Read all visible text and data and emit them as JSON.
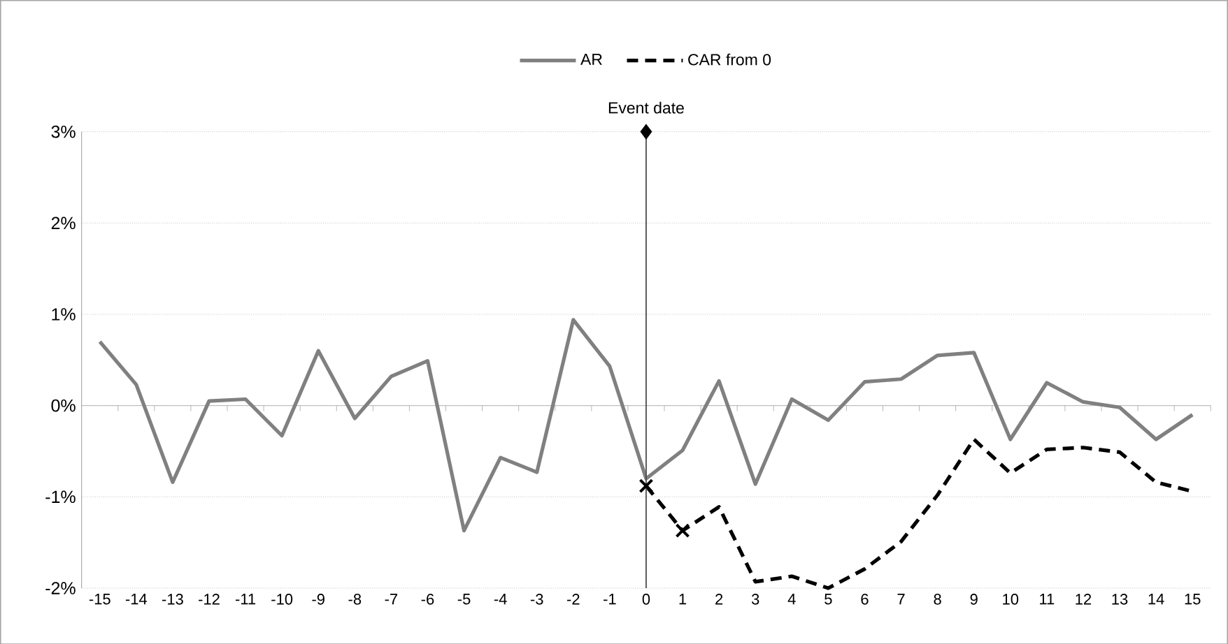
{
  "chart_data": {
    "type": "line",
    "categories": [
      "-15",
      "-14",
      "-13",
      "-12",
      "-11",
      "-10",
      "-9",
      "-8",
      "-7",
      "-6",
      "-5",
      "-4",
      "-3",
      "-2",
      "-1",
      "0",
      "1",
      "2",
      "3",
      "4",
      "5",
      "6",
      "7",
      "8",
      "9",
      "10",
      "11",
      "12",
      "13",
      "14",
      "15"
    ],
    "series": [
      {
        "name": "AR",
        "color": "#808080",
        "line_style": "solid",
        "values": [
          0.7,
          0.23,
          -0.84,
          0.05,
          0.07,
          -0.33,
          0.6,
          -0.14,
          0.32,
          0.49,
          -1.37,
          -0.57,
          -0.73,
          0.94,
          0.43,
          -0.8,
          -0.49,
          0.27,
          -0.86,
          0.07,
          -0.16,
          0.26,
          0.29,
          0.55,
          0.58,
          -0.37,
          0.25,
          0.04,
          -0.02,
          -0.37,
          -0.1
        ]
      },
      {
        "name": "CAR from 0",
        "color": "#000000",
        "line_style": "dashed",
        "values": [
          null,
          null,
          null,
          null,
          null,
          null,
          null,
          null,
          null,
          null,
          null,
          null,
          null,
          null,
          null,
          -0.88,
          -1.37,
          -1.11,
          -1.93,
          -1.87,
          -2.0,
          -1.79,
          -1.49,
          -0.98,
          -0.37,
          -0.74,
          -0.48,
          -0.46,
          -0.51,
          -0.84,
          -0.94
        ]
      },
      {
        "type": "scatter",
        "marker": "cross",
        "color": "#000000",
        "x": [
          "0",
          "1"
        ],
        "values": [
          -0.88,
          -1.37
        ]
      },
      {
        "type": "scatter",
        "marker": "diamond",
        "color": "#000000",
        "x": [
          "0"
        ],
        "values": [
          3
        ]
      }
    ],
    "ylim": [
      -2,
      3
    ],
    "yticks": [
      {
        "value": -2,
        "label": "-2%"
      },
      {
        "value": -1,
        "label": "-1%"
      },
      {
        "value": 0,
        "label": "0%"
      },
      {
        "value": 1,
        "label": "1%"
      },
      {
        "value": 2,
        "label": "2%"
      },
      {
        "value": 3,
        "label": "3%"
      }
    ],
    "grid": "y",
    "legend": "top",
    "ref_lines": [
      {
        "axis": "x",
        "value": "0",
        "label": "Event date",
        "color": "#4c4c4c"
      }
    ]
  }
}
